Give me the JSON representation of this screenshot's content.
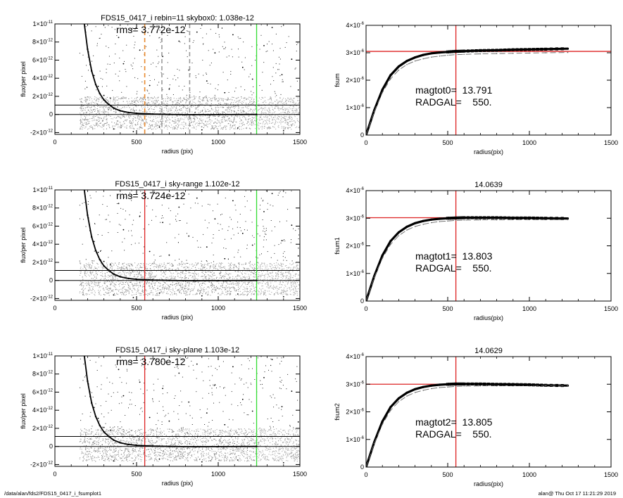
{
  "footer": {
    "left": "/data/alan/fds2/FDS15_0417_i_fsumplot1",
    "right": "alan@  Thu Oct 17 11:21:29 2019"
  },
  "chart_data": [
    {
      "type": "scatter",
      "title": "FDS15_0417_i rebin=11    skybox0:  1.038e-12",
      "annotations": [
        "rms= 3.772e-12"
      ],
      "xlabel": "radius (pix)",
      "ylabel": "flux/per pixel",
      "xlim": [
        0,
        1500
      ],
      "ylim": [
        -2.2e-12,
        1e-11
      ],
      "x_ticks": [
        0,
        500,
        1000,
        1500
      ],
      "x_tick_labels": [
        "0",
        "500",
        "1000",
        "1500"
      ],
      "y_ticks": [
        -2e-12,
        0,
        2e-12,
        4e-12,
        6e-12,
        8e-12,
        1e-11
      ],
      "y_tick_labels": [
        "-2×10-12",
        "0",
        "2×10-12",
        "4×10-12",
        "6×10-12",
        "8×10-12",
        "1×10-11"
      ],
      "hlines": [
        {
          "y": 1.038e-12,
          "color": "#000000"
        },
        {
          "y": 0,
          "color": "#000000"
        }
      ],
      "vlines": [
        {
          "x": 550,
          "color": "#e8892e",
          "dashed": true
        },
        {
          "x": 655,
          "color": "#9a9a9a",
          "dashed": true
        },
        {
          "x": 825,
          "color": "#9a9a9a",
          "dashed": true
        },
        {
          "x": 1235,
          "color": "#33dd33",
          "dashed": false
        }
      ],
      "profile": {
        "x": [
          180,
          200,
          225,
          250,
          275,
          300,
          330,
          360,
          400,
          450,
          500,
          600,
          700,
          850,
          1000,
          1235
        ],
        "y": [
          1e-11,
          7.2e-12,
          4.8e-12,
          3.3e-12,
          2.3e-12,
          1.6e-12,
          1.1e-12,
          7e-13,
          4e-13,
          2.2e-13,
          1.2e-13,
          4e-14,
          0,
          -3e-14,
          -2e-14,
          0
        ]
      },
      "scatter_points": [
        [
          185,
          9.3e-12
        ],
        [
          205,
          6.9e-12
        ],
        [
          215,
          5.5e-12
        ],
        [
          240,
          4.3e-12
        ],
        [
          265,
          3.1e-12
        ],
        [
          300,
          2.1e-12
        ],
        [
          340,
          1.8e-12
        ],
        [
          390,
          8.5e-12
        ],
        [
          420,
          5.6e-12
        ],
        [
          470,
          9.4e-12
        ],
        [
          520,
          7.1e-12
        ],
        [
          580,
          3.2e-12
        ],
        [
          610,
          9.7e-12
        ],
        [
          660,
          6.4e-12
        ],
        [
          700,
          2.8e-12
        ],
        [
          760,
          8.1e-12
        ],
        [
          820,
          4.9e-12
        ],
        [
          870,
          9.1e-12
        ],
        [
          930,
          3.7e-12
        ],
        [
          980,
          6.8e-12
        ],
        [
          1040,
          2.4e-12
        ],
        [
          1090,
          8.8e-12
        ],
        [
          1150,
          5.2e-12
        ],
        [
          1210,
          3.9e-12
        ],
        [
          1280,
          7.6e-12
        ],
        [
          1330,
          9.6e-12
        ],
        [
          1390,
          4.4e-12
        ],
        [
          1450,
          6.1e-12
        ],
        [
          1490,
          2.7e-12
        ],
        [
          360,
          -1.6e-12
        ],
        [
          480,
          -1.9e-12
        ],
        [
          640,
          -1.4e-12
        ],
        [
          900,
          -1.7e-12
        ],
        [
          1120,
          -1.5e-12
        ],
        [
          1400,
          -1.8e-12
        ]
      ],
      "scatter_band": [
        -1.6e-12,
        2e-12
      ],
      "scatter_band_dark_to_x": 1235
    },
    {
      "type": "line",
      "title": "",
      "annotations": [
        "magtot0=  13.791",
        "RADGAL=    550."
      ],
      "xlabel": "radius(pix)",
      "ylabel": "fsum",
      "xlim": [
        0,
        1500
      ],
      "ylim": [
        0,
        4e-06
      ],
      "x_ticks": [
        0,
        500,
        1000,
        1500
      ],
      "x_tick_labels": [
        "0",
        "500",
        "1000",
        "1500"
      ],
      "y_ticks": [
        0,
        1e-06,
        2e-06,
        3e-06,
        4e-06
      ],
      "y_tick_labels": [
        "0",
        "1×10-6",
        "2×10-6",
        "3×10-6",
        "4×10-6"
      ],
      "hlines": [
        {
          "y": 3.05e-06,
          "color": "#dd2222"
        }
      ],
      "vlines": [
        {
          "x": 550,
          "color": "#dd2222",
          "dashed": false
        }
      ],
      "series": [
        {
          "style": "thick",
          "x": [
            0,
            50,
            100,
            150,
            200,
            250,
            300,
            350,
            400,
            450,
            500,
            550,
            600,
            700,
            800,
            900,
            1000,
            1100,
            1235
          ],
          "y": [
            0,
            9e-07,
            1.65e-06,
            2.18e-06,
            2.5e-06,
            2.7e-06,
            2.83e-06,
            2.92e-06,
            2.98e-06,
            3.01e-06,
            3.03e-06,
            3.05e-06,
            3.06e-06,
            3.08e-06,
            3.09e-06,
            3.11e-06,
            3.12e-06,
            3.13e-06,
            3.15e-06
          ]
        },
        {
          "style": "dashed",
          "x": [
            0,
            50,
            100,
            150,
            200,
            250,
            300,
            350,
            400,
            450,
            500,
            550,
            600,
            700,
            800,
            900,
            1000,
            1100,
            1235
          ],
          "y": [
            0,
            8.5e-07,
            1.55e-06,
            2.05e-06,
            2.37e-06,
            2.57e-06,
            2.7e-06,
            2.78e-06,
            2.84e-06,
            2.88e-06,
            2.91e-06,
            2.93e-06,
            2.94e-06,
            2.96e-06,
            2.97e-06,
            2.98e-06,
            2.99e-06,
            3e-06,
            3.01e-06
          ]
        }
      ]
    },
    {
      "type": "scatter",
      "title": "FDS15_0417_i sky-range  1.102e-12",
      "annotations": [
        "rms= 3.724e-12"
      ],
      "xlabel": "radius (pix)",
      "ylabel": "flux/per pixel",
      "xlim": [
        0,
        1500
      ],
      "ylim": [
        -2.2e-12,
        1e-11
      ],
      "x_ticks": [
        0,
        500,
        1000,
        1500
      ],
      "x_tick_labels": [
        "0",
        "500",
        "1000",
        "1500"
      ],
      "y_ticks": [
        -2e-12,
        0,
        2e-12,
        4e-12,
        6e-12,
        8e-12,
        1e-11
      ],
      "y_tick_labels": [
        "-2×10-12",
        "0",
        "2×10-12",
        "4×10-12",
        "6×10-12",
        "8×10-12",
        "1×10-11"
      ],
      "hlines": [
        {
          "y": 1.102e-12,
          "color": "#000000"
        },
        {
          "y": 0,
          "color": "#000000"
        }
      ],
      "vlines": [
        {
          "x": 550,
          "color": "#dd2222",
          "dashed": false
        },
        {
          "x": 1235,
          "color": "#33dd33",
          "dashed": false
        }
      ],
      "profile": {
        "x": [
          180,
          200,
          225,
          250,
          275,
          300,
          330,
          360,
          400,
          450,
          500,
          600,
          700,
          850,
          1000,
          1235
        ],
        "y": [
          1e-11,
          7.2e-12,
          4.8e-12,
          3.3e-12,
          2.3e-12,
          1.6e-12,
          1.1e-12,
          7e-13,
          4e-13,
          2.2e-13,
          1.2e-13,
          4e-14,
          0,
          -3e-14,
          -2e-14,
          0
        ]
      },
      "scatter_points": [
        [
          185,
          9.3e-12
        ],
        [
          205,
          6.9e-12
        ],
        [
          215,
          5.5e-12
        ],
        [
          240,
          4.3e-12
        ],
        [
          265,
          3.1e-12
        ],
        [
          300,
          2.1e-12
        ],
        [
          340,
          1.8e-12
        ],
        [
          390,
          8.5e-12
        ],
        [
          420,
          5.6e-12
        ],
        [
          470,
          9.4e-12
        ],
        [
          520,
          7.1e-12
        ],
        [
          580,
          3.2e-12
        ],
        [
          610,
          9.7e-12
        ],
        [
          660,
          6.4e-12
        ],
        [
          700,
          2.8e-12
        ],
        [
          760,
          8.1e-12
        ],
        [
          820,
          4.9e-12
        ],
        [
          870,
          9.1e-12
        ],
        [
          930,
          3.7e-12
        ],
        [
          980,
          6.8e-12
        ],
        [
          1040,
          2.4e-12
        ],
        [
          1090,
          8.8e-12
        ],
        [
          1150,
          5.2e-12
        ],
        [
          1210,
          3.9e-12
        ],
        [
          1280,
          7.6e-12
        ],
        [
          1330,
          9.6e-12
        ],
        [
          1390,
          4.4e-12
        ],
        [
          1450,
          6.1e-12
        ],
        [
          1490,
          2.7e-12
        ],
        [
          360,
          -1.6e-12
        ],
        [
          480,
          -1.9e-12
        ],
        [
          640,
          -1.4e-12
        ],
        [
          900,
          -1.7e-12
        ],
        [
          1120,
          -1.5e-12
        ],
        [
          1400,
          -1.8e-12
        ]
      ],
      "scatter_band": [
        -1.6e-12,
        2e-12
      ],
      "scatter_band_dark_to_x": 1235
    },
    {
      "type": "line",
      "title": "14.0639",
      "annotations": [
        "magtot1=  13.803",
        "RADGAL=    550."
      ],
      "xlabel": "radius(pix)",
      "ylabel": "fsum1",
      "xlim": [
        0,
        1500
      ],
      "ylim": [
        0,
        4e-06
      ],
      "x_ticks": [
        0,
        500,
        1000,
        1500
      ],
      "x_tick_labels": [
        "0",
        "500",
        "1000",
        "1500"
      ],
      "y_ticks": [
        0,
        1e-06,
        2e-06,
        3e-06,
        4e-06
      ],
      "y_tick_labels": [
        "0",
        "1×10-6",
        "2×10-6",
        "3×10-6",
        "4×10-6"
      ],
      "hlines": [
        {
          "y": 3.02e-06,
          "color": "#dd2222",
          "x_end": 1000
        }
      ],
      "vlines": [
        {
          "x": 550,
          "color": "#dd2222",
          "dashed": false
        }
      ],
      "series": [
        {
          "style": "thick",
          "x": [
            0,
            50,
            100,
            150,
            200,
            250,
            300,
            350,
            400,
            450,
            500,
            550,
            600,
            700,
            800,
            900,
            1000,
            1100,
            1235
          ],
          "y": [
            0,
            9e-07,
            1.65e-06,
            2.17e-06,
            2.49e-06,
            2.69e-06,
            2.82e-06,
            2.9e-06,
            2.95e-06,
            2.98e-06,
            3e-06,
            3.01e-06,
            3.02e-06,
            3.02e-06,
            3.02e-06,
            3.01e-06,
            3.01e-06,
            3e-06,
            2.99e-06
          ]
        },
        {
          "style": "dashed",
          "x": [
            0,
            50,
            100,
            150,
            200,
            250,
            300,
            350,
            400,
            450,
            500,
            550,
            600,
            700,
            800,
            900,
            1000,
            1100,
            1235
          ],
          "y": [
            0,
            8.5e-07,
            1.55e-06,
            2.05e-06,
            2.37e-06,
            2.57e-06,
            2.7e-06,
            2.78e-06,
            2.84e-06,
            2.88e-06,
            2.9e-06,
            2.92e-06,
            2.93e-06,
            2.94e-06,
            2.94e-06,
            2.95e-06,
            2.95e-06,
            2.95e-06,
            2.95e-06
          ]
        }
      ]
    },
    {
      "type": "scatter",
      "title": "FDS15_0417_i sky-plane  1.103e-12",
      "annotations": [
        "rms= 3.780e-12"
      ],
      "xlabel": "radius (pix)",
      "ylabel": "flux/per pixel",
      "xlim": [
        0,
        1500
      ],
      "ylim": [
        -2.2e-12,
        1e-11
      ],
      "x_ticks": [
        0,
        500,
        1000,
        1500
      ],
      "x_tick_labels": [
        "0",
        "500",
        "1000",
        "1500"
      ],
      "y_ticks": [
        -2e-12,
        0,
        2e-12,
        4e-12,
        6e-12,
        8e-12,
        1e-11
      ],
      "y_tick_labels": [
        "-2×10-12",
        "0",
        "2×10-12",
        "4×10-12",
        "6×10-12",
        "8×10-12",
        "1×10-11"
      ],
      "hlines": [
        {
          "y": 1.103e-12,
          "color": "#000000"
        },
        {
          "y": 0,
          "color": "#000000"
        }
      ],
      "vlines": [
        {
          "x": 550,
          "color": "#dd2222",
          "dashed": false
        },
        {
          "x": 1235,
          "color": "#33dd33",
          "dashed": false
        }
      ],
      "profile": {
        "x": [
          180,
          200,
          225,
          250,
          275,
          300,
          330,
          360,
          400,
          450,
          500,
          600,
          700,
          850,
          1000,
          1235
        ],
        "y": [
          1e-11,
          7.2e-12,
          4.8e-12,
          3.3e-12,
          2.3e-12,
          1.6e-12,
          1.1e-12,
          7e-13,
          4e-13,
          2.2e-13,
          1.2e-13,
          4e-14,
          0,
          -3e-14,
          -2e-14,
          0
        ]
      },
      "scatter_points": [
        [
          185,
          9.3e-12
        ],
        [
          205,
          6.9e-12
        ],
        [
          215,
          5.5e-12
        ],
        [
          240,
          4.3e-12
        ],
        [
          265,
          3.1e-12
        ],
        [
          300,
          2.1e-12
        ],
        [
          340,
          1.8e-12
        ],
        [
          390,
          8.5e-12
        ],
        [
          420,
          5.6e-12
        ],
        [
          470,
          9.4e-12
        ],
        [
          520,
          7.1e-12
        ],
        [
          580,
          3.2e-12
        ],
        [
          610,
          9.7e-12
        ],
        [
          660,
          6.4e-12
        ],
        [
          700,
          2.8e-12
        ],
        [
          760,
          8.1e-12
        ],
        [
          820,
          4.9e-12
        ],
        [
          870,
          9.1e-12
        ],
        [
          930,
          3.7e-12
        ],
        [
          980,
          6.8e-12
        ],
        [
          1040,
          2.4e-12
        ],
        [
          1090,
          8.8e-12
        ],
        [
          1150,
          5.2e-12
        ],
        [
          1210,
          3.9e-12
        ],
        [
          1280,
          7.6e-12
        ],
        [
          1330,
          9.6e-12
        ],
        [
          1390,
          4.4e-12
        ],
        [
          1450,
          6.1e-12
        ],
        [
          1490,
          2.7e-12
        ],
        [
          360,
          -1.6e-12
        ],
        [
          480,
          -1.9e-12
        ],
        [
          640,
          -1.4e-12
        ],
        [
          900,
          -1.7e-12
        ],
        [
          1120,
          -1.5e-12
        ],
        [
          1400,
          -1.8e-12
        ]
      ],
      "scatter_band": [
        -1.6e-12,
        2e-12
      ],
      "scatter_band_dark_to_x": 1235
    },
    {
      "type": "line",
      "title": "14.0629",
      "annotations": [
        "magtot2=  13.805",
        "RADGAL=    550."
      ],
      "xlabel": "radius(pix)",
      "ylabel": "fsum2",
      "xlim": [
        0,
        1500
      ],
      "ylim": [
        0,
        4e-06
      ],
      "x_ticks": [
        0,
        500,
        1000,
        1500
      ],
      "x_tick_labels": [
        "0",
        "500",
        "1000",
        "1500"
      ],
      "y_ticks": [
        0,
        1e-06,
        2e-06,
        3e-06,
        4e-06
      ],
      "y_tick_labels": [
        "0",
        "1×10-6",
        "2×10-6",
        "3×10-6",
        "4×10-6"
      ],
      "hlines": [
        {
          "y": 3e-06,
          "color": "#dd2222",
          "x_end": 1000
        }
      ],
      "vlines": [
        {
          "x": 550,
          "color": "#dd2222",
          "dashed": false
        }
      ],
      "series": [
        {
          "style": "thick",
          "x": [
            0,
            50,
            100,
            150,
            200,
            250,
            300,
            350,
            400,
            450,
            500,
            550,
            600,
            700,
            800,
            900,
            1000,
            1100,
            1235
          ],
          "y": [
            0,
            9e-07,
            1.65e-06,
            2.17e-06,
            2.49e-06,
            2.69e-06,
            2.82e-06,
            2.9e-06,
            2.95e-06,
            2.98e-06,
            3e-06,
            3.01e-06,
            3.01e-06,
            3.01e-06,
            3e-06,
            2.99e-06,
            2.98e-06,
            2.96e-06,
            2.95e-06
          ]
        },
        {
          "style": "dashed",
          "x": [
            0,
            50,
            100,
            150,
            200,
            250,
            300,
            350,
            400,
            450,
            500,
            550,
            600,
            700,
            800,
            900,
            1000,
            1100,
            1235
          ],
          "y": [
            0,
            8.5e-07,
            1.55e-06,
            2.05e-06,
            2.37e-06,
            2.57e-06,
            2.7e-06,
            2.78e-06,
            2.84e-06,
            2.88e-06,
            2.9e-06,
            2.92e-06,
            2.93e-06,
            2.94e-06,
            2.94e-06,
            2.94e-06,
            2.94e-06,
            2.94e-06,
            2.94e-06
          ]
        }
      ]
    }
  ]
}
